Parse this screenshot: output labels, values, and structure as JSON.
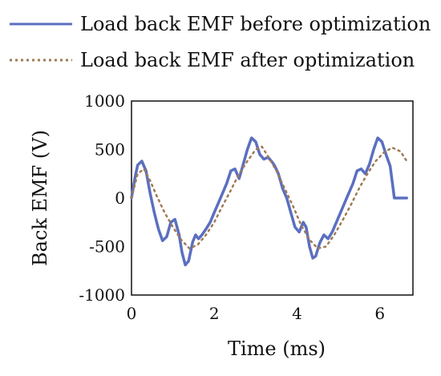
{
  "chart_data": {
    "type": "line",
    "title": "",
    "xlabel": "Time (ms)",
    "ylabel": "Back EMF (V)",
    "xlim": [
      0,
      6.8
    ],
    "ylim": [
      -1000,
      1000
    ],
    "xticks": [
      0,
      2,
      4,
      6
    ],
    "yticks": [
      1000,
      500,
      0,
      -500,
      -1000
    ],
    "xtick_labels": [
      "0",
      "2",
      "4",
      "6"
    ],
    "ytick_labels": [
      "1000",
      "500",
      "0",
      "-500",
      "-1000"
    ],
    "grid": false,
    "legend_position": "top",
    "series": [
      {
        "name": "Load back EMF before optimization",
        "color": "#5b6fc0",
        "style": "solid",
        "x": [
          0.0,
          0.08,
          0.15,
          0.25,
          0.35,
          0.45,
          0.55,
          0.65,
          0.75,
          0.85,
          0.95,
          1.05,
          1.15,
          1.22,
          1.3,
          1.38,
          1.48,
          1.55,
          1.62,
          1.7,
          1.8,
          1.9,
          2.0,
          2.1,
          2.2,
          2.3,
          2.4,
          2.5,
          2.6,
          2.7,
          2.8,
          2.9,
          3.0,
          3.1,
          3.2,
          3.3,
          3.38,
          3.45,
          3.55,
          3.65,
          3.75,
          3.85,
          3.95,
          4.05,
          4.15,
          4.22,
          4.3,
          4.38,
          4.45,
          4.55,
          4.65,
          4.75,
          4.85,
          4.95,
          5.05,
          5.15,
          5.25,
          5.35,
          5.45,
          5.55,
          5.65,
          5.75,
          5.85,
          5.95,
          6.05,
          6.15,
          6.25,
          6.35,
          6.45,
          6.55,
          6.65
        ],
        "y": [
          0,
          200,
          340,
          380,
          280,
          50,
          -150,
          -320,
          -440,
          -400,
          -250,
          -220,
          -380,
          -560,
          -690,
          -650,
          -450,
          -380,
          -420,
          -380,
          -320,
          -250,
          -150,
          -50,
          50,
          150,
          280,
          300,
          200,
          350,
          500,
          620,
          580,
          450,
          400,
          420,
          380,
          340,
          250,
          100,
          0,
          -150,
          -300,
          -350,
          -250,
          -300,
          -500,
          -620,
          -600,
          -460,
          -380,
          -420,
          -350,
          -250,
          -150,
          -50,
          50,
          150,
          280,
          300,
          250,
          350,
          500,
          620,
          580,
          450,
          330,
          0,
          0,
          0,
          0
        ]
      },
      {
        "name": "Load back EMF after optimization",
        "color": "#a07a55",
        "style": "dotted",
        "x": [
          0.0,
          0.15,
          0.3,
          0.45,
          0.6,
          0.8,
          1.0,
          1.2,
          1.4,
          1.6,
          1.8,
          2.0,
          2.2,
          2.4,
          2.6,
          2.8,
          3.0,
          3.15,
          3.3,
          3.5,
          3.7,
          3.9,
          4.1,
          4.3,
          4.5,
          4.7,
          4.9,
          5.1,
          5.3,
          5.5,
          5.7,
          5.9,
          6.1,
          6.3,
          6.5,
          6.65
        ],
        "y": [
          0,
          250,
          300,
          180,
          30,
          -150,
          -300,
          -430,
          -520,
          -480,
          -380,
          -250,
          -80,
          80,
          250,
          380,
          500,
          530,
          430,
          280,
          100,
          -80,
          -280,
          -430,
          -520,
          -500,
          -380,
          -230,
          -70,
          100,
          250,
          380,
          470,
          520,
          480,
          380
        ]
      }
    ]
  }
}
